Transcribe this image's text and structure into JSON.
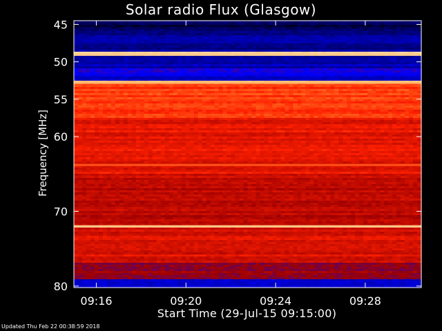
{
  "chart_data": {
    "type": "heatmap",
    "title": "Solar radio Flux (Glasgow)",
    "xlabel": "Start Time (29-Jul-15 09:15:00)",
    "ylabel": "Frequency [MHz]",
    "x_range": [
      "09:15:00",
      "09:30:30"
    ],
    "y_range": [
      44.5,
      80.2
    ],
    "y_ticks": [
      {
        "value": 45,
        "label": "45"
      },
      {
        "value": 50,
        "label": "50"
      },
      {
        "value": 55,
        "label": "55"
      },
      {
        "value": 60,
        "label": "60"
      },
      {
        "value": 70,
        "label": "70"
      },
      {
        "value": 80,
        "label": "80"
      }
    ],
    "x_ticks": [
      {
        "value": "09:16",
        "label": "09:16"
      },
      {
        "value": "09:20",
        "label": "09:20"
      },
      {
        "value": "09:24",
        "label": "09:24"
      },
      {
        "value": "09:28",
        "label": "09:28"
      }
    ],
    "colormap": [
      "#000000",
      "#00008c",
      "#0000ff",
      "#a00000",
      "#ff2000",
      "#ff9030",
      "#ffd8a0"
    ],
    "intensity_bands": [
      {
        "f_start": 44.5,
        "f_end": 45.8,
        "level": 0.1
      },
      {
        "f_start": 45.8,
        "f_end": 48.7,
        "level": 0.18
      },
      {
        "f_start": 48.7,
        "f_end": 49.3,
        "level": 0.97
      },
      {
        "f_start": 49.3,
        "f_end": 51.0,
        "level": 0.22
      },
      {
        "f_start": 51.0,
        "f_end": 52.0,
        "level": 0.32
      },
      {
        "f_start": 52.0,
        "f_end": 52.6,
        "level": 0.25
      },
      {
        "f_start": 52.6,
        "f_end": 52.9,
        "level": 0.93
      },
      {
        "f_start": 52.9,
        "f_end": 57.5,
        "level": 0.7
      },
      {
        "f_start": 57.5,
        "f_end": 65.0,
        "level": 0.62
      },
      {
        "f_start": 65.0,
        "f_end": 71.8,
        "level": 0.55
      },
      {
        "f_start": 71.8,
        "f_end": 72.2,
        "level": 0.96
      },
      {
        "f_start": 72.2,
        "f_end": 77.0,
        "level": 0.6
      },
      {
        "f_start": 77.0,
        "f_end": 79.0,
        "level": 0.5
      },
      {
        "f_start": 79.0,
        "f_end": 80.2,
        "level": 0.28
      }
    ],
    "bright_lines": [
      {
        "freq": 49.0,
        "level": 0.97
      },
      {
        "freq": 52.8,
        "level": 0.93
      },
      {
        "freq": 63.8,
        "level": 0.74
      },
      {
        "freq": 72.0,
        "level": 0.96
      }
    ],
    "grid": false,
    "legend": "none"
  },
  "footer": "Updated Thu Feb 22 00:38:59 2018"
}
